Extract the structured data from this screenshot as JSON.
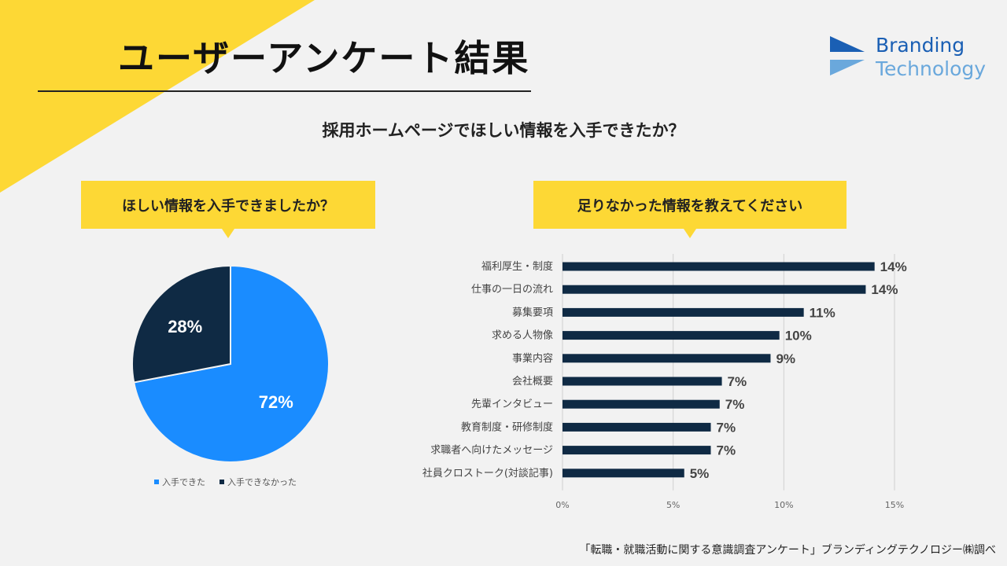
{
  "page": {
    "title": "ユーザーアンケート結果",
    "question": "採用ホームページでほしい情報を入手できたか？",
    "source": "「転職・就職活動に関する意識調査アンケート」ブランディングテクノロジー㈱調べ"
  },
  "logo": {
    "line1": "Branding",
    "line2": "Technology"
  },
  "colors": {
    "accent_yellow": "#fdd835",
    "pie_blue": "#1a8cff",
    "navy": "#0f2a44",
    "logo_blue": "#1a5fb4",
    "logo_light": "#6aa8dc"
  },
  "chart_data": [
    {
      "type": "pie",
      "title": "ほしい情報を入手できましたか？",
      "slices": [
        {
          "name": "入手できた",
          "value": 72,
          "label": "72%"
        },
        {
          "name": "入手できなかった",
          "value": 28,
          "label": "28%"
        }
      ],
      "legend": [
        "入手できた",
        "入手できなかった"
      ],
      "legend_position": "bottom"
    },
    {
      "type": "bar",
      "orientation": "horizontal",
      "title": "足りなかった情報を教えてください",
      "categories": [
        "福利厚生・制度",
        "仕事の一日の流れ",
        "募集要項",
        "求める人物像",
        "事業内容",
        "会社概要",
        "先輩インタビュー",
        "教育制度・研修制度",
        "求職者へ向けたメッセージ",
        "社員クロストーク(対談記事)"
      ],
      "values": [
        14.1,
        13.7,
        10.9,
        9.8,
        9.4,
        7.2,
        7.1,
        6.7,
        6.7,
        5.5
      ],
      "data_labels": [
        "14%",
        "14%",
        "11%",
        "10%",
        "9%",
        "7%",
        "7%",
        "7%",
        "7%",
        "5%"
      ],
      "xlim": [
        0,
        15
      ],
      "xticks": [
        "0%",
        "5%",
        "10%",
        "15%"
      ],
      "grid": true
    }
  ]
}
